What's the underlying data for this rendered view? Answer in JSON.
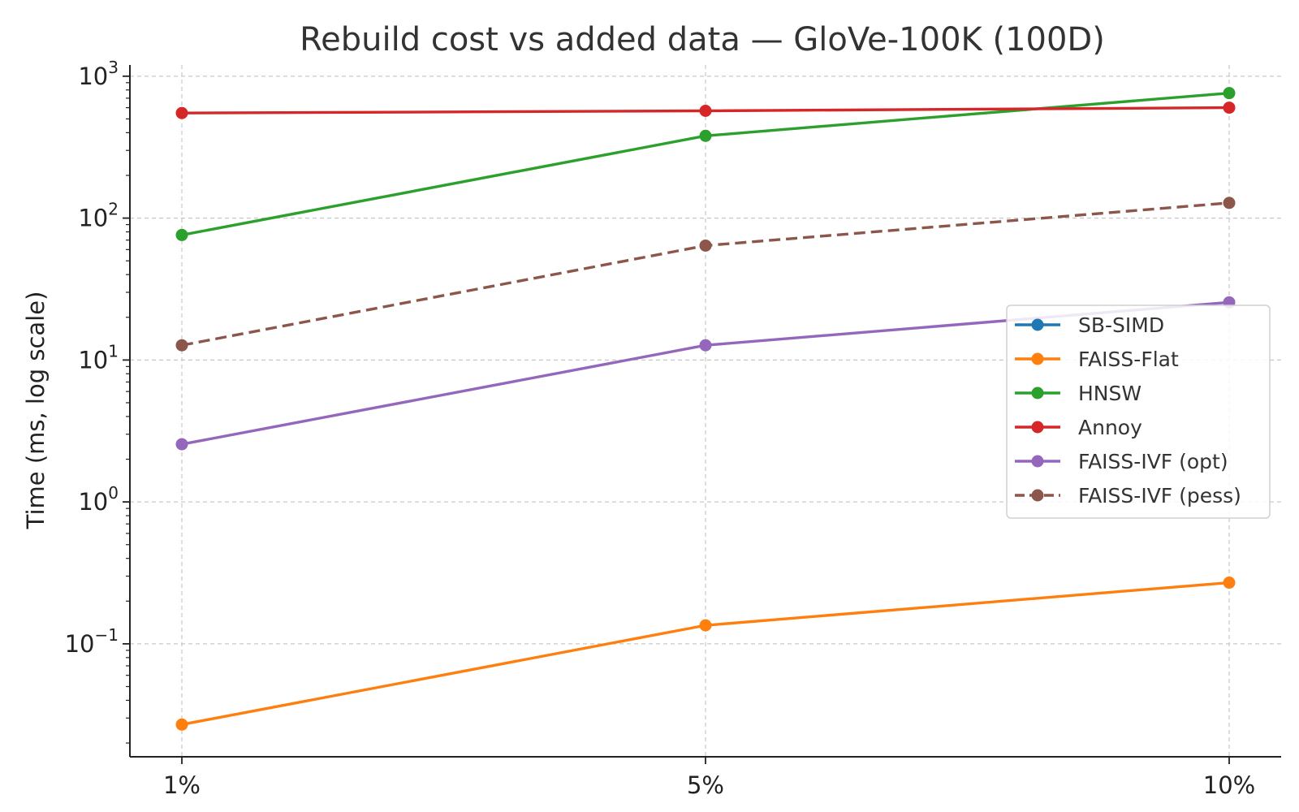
{
  "chart_data": {
    "type": "line",
    "title": "Rebuild cost vs added data — GloVe-100K (100D)",
    "xlabel": "",
    "ylabel": "Time (ms, log scale)",
    "y_scale": "log",
    "ylim": [
      0.016,
      1200
    ],
    "grid": true,
    "legend_position": "center-right",
    "categories": [
      "1%",
      "5%",
      "10%"
    ],
    "y_ticks": [
      {
        "value": 0.1,
        "base": "10",
        "exp": "−1"
      },
      {
        "value": 1,
        "base": "10",
        "exp": "0"
      },
      {
        "value": 10,
        "base": "10",
        "exp": "1"
      },
      {
        "value": 100,
        "base": "10",
        "exp": "2"
      },
      {
        "value": 1000,
        "base": "10",
        "exp": "3"
      }
    ],
    "series": [
      {
        "name": "SB-SIMD",
        "color": "#1f77b4",
        "dashed": false,
        "values": [
          null,
          null,
          null
        ]
      },
      {
        "name": "FAISS-Flat",
        "color": "#ff7f0e",
        "dashed": false,
        "values": [
          0.027,
          0.135,
          0.27
        ]
      },
      {
        "name": "HNSW",
        "color": "#2ca02c",
        "dashed": false,
        "values": [
          76,
          380,
          760
        ]
      },
      {
        "name": "Annoy",
        "color": "#d62728",
        "dashed": false,
        "values": [
          550,
          570,
          600
        ]
      },
      {
        "name": "FAISS-IVF (opt)",
        "color": "#9467bd",
        "dashed": false,
        "values": [
          2.55,
          12.7,
          25.5
        ]
      },
      {
        "name": "FAISS-IVF (pess)",
        "color": "#8c564b",
        "dashed": true,
        "values": [
          12.7,
          64,
          128
        ]
      }
    ]
  }
}
